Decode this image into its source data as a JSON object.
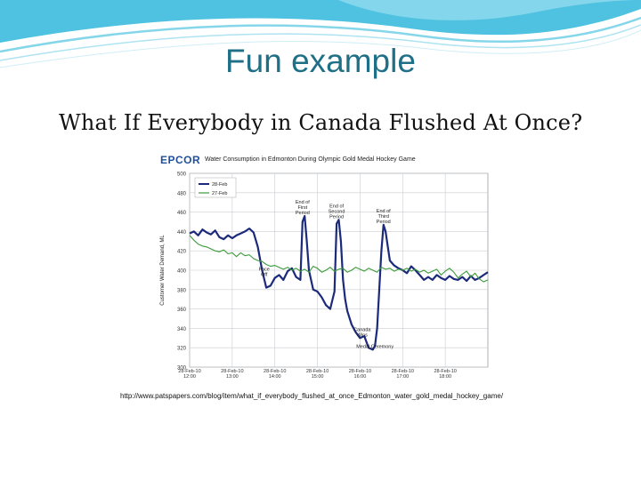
{
  "slide": {
    "title": "Fun example",
    "subtitle": "What If Everybody in Canada Flushed At Once?",
    "accent_color": "#1f6f86"
  },
  "figure": {
    "logo": "EPCOR",
    "url": "http://www.patspapers.com/blog/item/what_if_everybody_flushed_at_once_Edmonton_water_gold_medal_hockey_game/"
  },
  "chart_data": {
    "type": "line",
    "title": "Water Consumption in Edmonton During Olympic Gold Medal Hockey Game",
    "ylabel": "Customer Water Demand, ML",
    "xlabel": "",
    "ylim": [
      300,
      500
    ],
    "yticks": [
      300,
      320,
      340,
      360,
      380,
      400,
      420,
      440,
      460,
      480,
      500
    ],
    "xlim": [
      0,
      7
    ],
    "xticks": [
      {
        "x": 0,
        "label": "28-Feb-10 12:00"
      },
      {
        "x": 1,
        "label": "28-Feb-10 13:00"
      },
      {
        "x": 2,
        "label": "28-Feb-10 14:00"
      },
      {
        "x": 3,
        "label": "28-Feb-10 15:00"
      },
      {
        "x": 4,
        "label": "28-Feb-10 16:00"
      },
      {
        "x": 5,
        "label": "28-Feb-10 17:00"
      },
      {
        "x": 6,
        "label": "28-Feb-10 18:00"
      }
    ],
    "grid": true,
    "legend_position": "top-left",
    "series": [
      {
        "name": "28-Feb",
        "color": "#1b2a7a",
        "x": [
          0,
          0.1,
          0.2,
          0.3,
          0.4,
          0.5,
          0.6,
          0.7,
          0.8,
          0.9,
          1.0,
          1.1,
          1.2,
          1.3,
          1.4,
          1.5,
          1.6,
          1.7,
          1.8,
          1.9,
          2.0,
          2.1,
          2.2,
          2.3,
          2.4,
          2.5,
          2.6,
          2.65,
          2.7,
          2.75,
          2.8,
          2.9,
          3.0,
          3.1,
          3.2,
          3.3,
          3.4,
          3.45,
          3.5,
          3.55,
          3.6,
          3.65,
          3.7,
          3.8,
          3.9,
          4.0,
          4.1,
          4.2,
          4.3,
          4.35,
          4.4,
          4.45,
          4.5,
          4.55,
          4.6,
          4.65,
          4.7,
          4.8,
          4.9,
          5.0,
          5.1,
          5.2,
          5.3,
          5.4,
          5.5,
          5.6,
          5.7,
          5.8,
          5.9,
          6.0,
          6.1,
          6.2,
          6.3,
          6.4,
          6.5,
          6.6,
          6.7,
          6.8,
          6.9,
          7.0
        ],
        "y": [
          438,
          440,
          436,
          442,
          439,
          437,
          441,
          434,
          432,
          436,
          433,
          436,
          438,
          440,
          443,
          439,
          424,
          400,
          382,
          384,
          392,
          395,
          390,
          399,
          402,
          393,
          390,
          450,
          456,
          430,
          400,
          380,
          378,
          372,
          364,
          360,
          378,
          448,
          452,
          430,
          390,
          370,
          358,
          344,
          336,
          330,
          332,
          320,
          318,
          322,
          340,
          380,
          420,
          447,
          440,
          425,
          410,
          405,
          402,
          400,
          397,
          404,
          400,
          395,
          390,
          393,
          390,
          395,
          392,
          390,
          394,
          391,
          390,
          393,
          389,
          394,
          390,
          392,
          395,
          398
        ]
      },
      {
        "name": "27-Feb",
        "color": "#3a9a3a",
        "x": [
          0,
          0.1,
          0.2,
          0.3,
          0.4,
          0.5,
          0.6,
          0.7,
          0.8,
          0.9,
          1.0,
          1.1,
          1.2,
          1.3,
          1.4,
          1.5,
          1.6,
          1.7,
          1.8,
          1.9,
          2.0,
          2.1,
          2.2,
          2.3,
          2.4,
          2.5,
          2.6,
          2.7,
          2.8,
          2.9,
          3.0,
          3.1,
          3.2,
          3.3,
          3.4,
          3.5,
          3.6,
          3.7,
          3.8,
          3.9,
          4.0,
          4.1,
          4.2,
          4.3,
          4.4,
          4.5,
          4.6,
          4.7,
          4.8,
          4.9,
          5.0,
          5.1,
          5.2,
          5.3,
          5.4,
          5.5,
          5.6,
          5.7,
          5.8,
          5.9,
          6.0,
          6.1,
          6.2,
          6.3,
          6.4,
          6.5,
          6.6,
          6.7,
          6.8,
          6.9,
          7.0
        ],
        "y": [
          436,
          431,
          427,
          425,
          424,
          422,
          420,
          419,
          421,
          417,
          418,
          414,
          418,
          415,
          416,
          412,
          410,
          409,
          406,
          404,
          405,
          403,
          401,
          403,
          400,
          402,
          399,
          401,
          398,
          404,
          402,
          398,
          400,
          403,
          399,
          401,
          402,
          398,
          400,
          403,
          401,
          399,
          402,
          400,
          398,
          403,
          401,
          402,
          399,
          401,
          400,
          402,
          399,
          401,
          398,
          400,
          397,
          399,
          401,
          395,
          399,
          402,
          398,
          392,
          396,
          399,
          393,
          397,
          391,
          388,
          390
        ]
      }
    ],
    "annotations": [
      {
        "text": [
          "Face",
          "Off"
        ],
        "x": 1.75,
        "y": 392
      },
      {
        "text": [
          "End of",
          "First",
          "Period"
        ],
        "x": 2.65,
        "y": 456
      },
      {
        "text": [
          "End of",
          "Second",
          "Period"
        ],
        "x": 3.45,
        "y": 452
      },
      {
        "text": [
          "End of",
          "Third",
          "Period"
        ],
        "x": 4.55,
        "y": 447
      },
      {
        "text": [
          "Canada",
          "Wins"
        ],
        "x": 4.05,
        "y": 330
      },
      {
        "text": [
          "Medal Ceremony"
        ],
        "x": 4.35,
        "y": 318
      }
    ]
  }
}
